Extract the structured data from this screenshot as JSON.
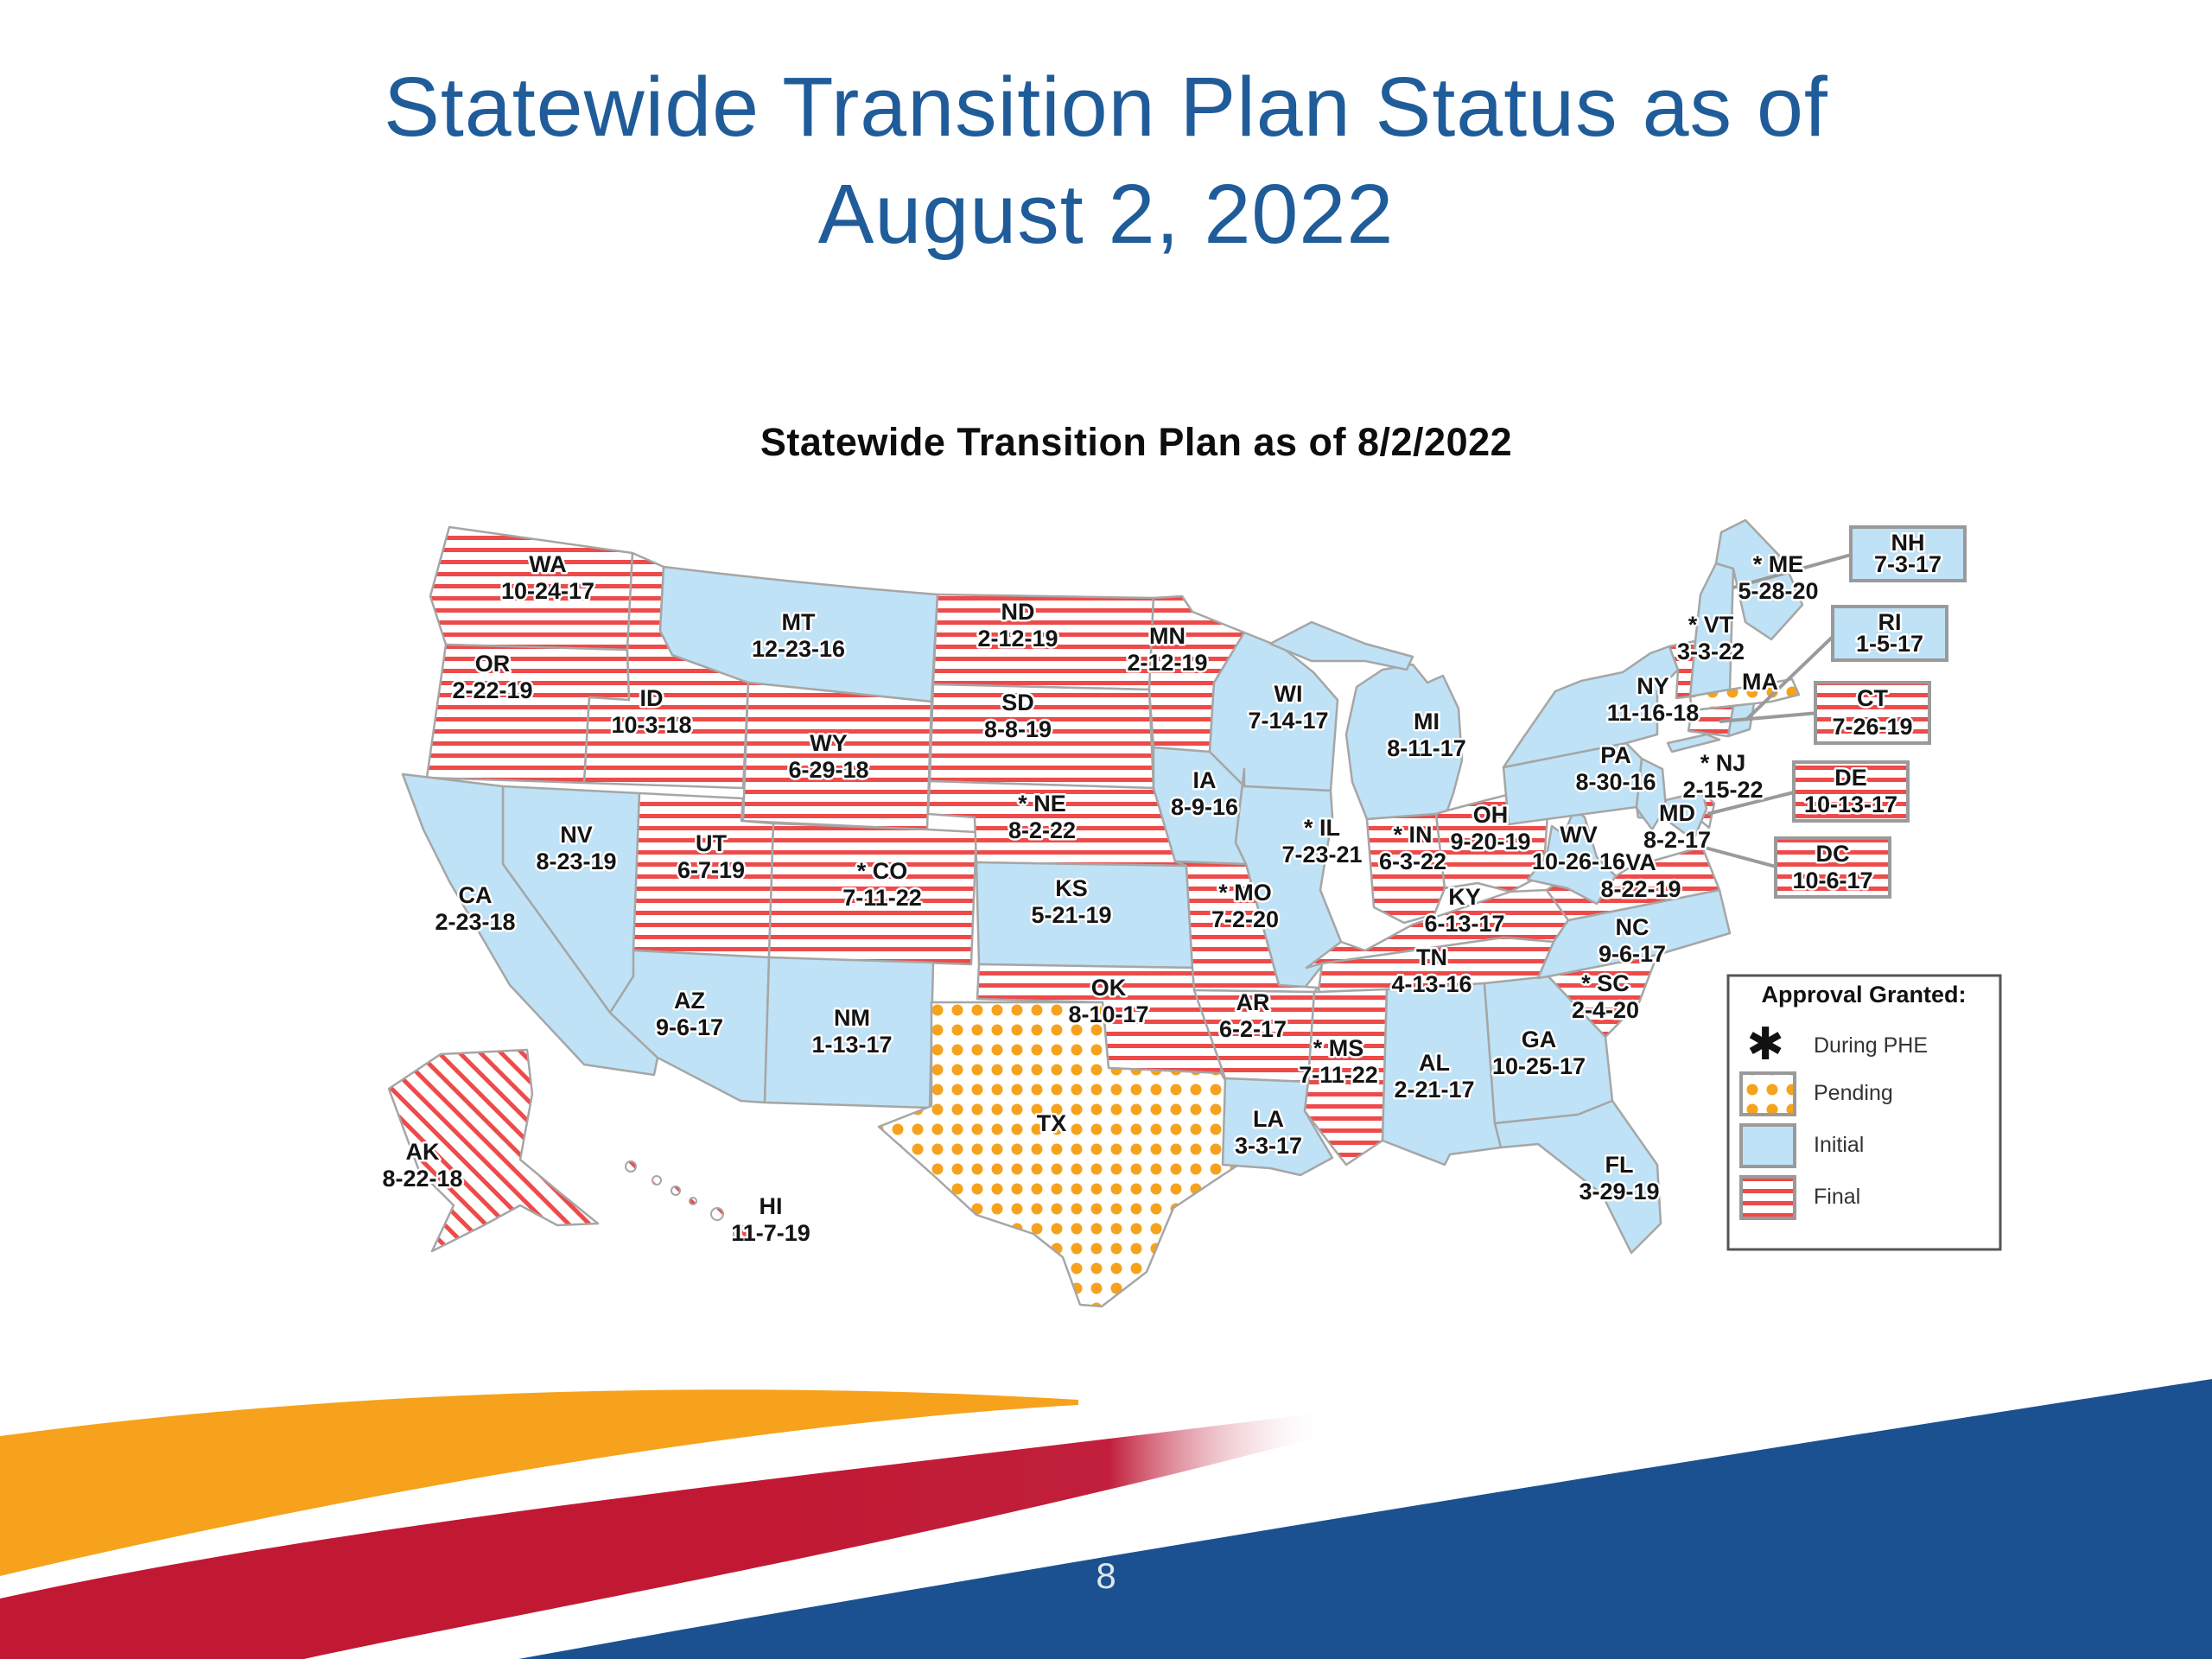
{
  "slide": {
    "title_line1": "Statewide Transition Plan Status as of",
    "title_line2": "August 2, 2022",
    "page_number": "8"
  },
  "map": {
    "title": "Statewide Transition Plan as of 8/2/2022",
    "status_colors": {
      "initial": "#bfe2f6",
      "final_stripe": "#ee4a4a",
      "pending_dot": "#f6a21c",
      "border": "#a6a6a6"
    },
    "states": [
      {
        "id": "WA",
        "label": "WA",
        "date": "10-24-17",
        "status": "final"
      },
      {
        "id": "OR",
        "label": "OR",
        "date": "2-22-19",
        "status": "final"
      },
      {
        "id": "ID",
        "label": "ID",
        "date": "10-3-18",
        "status": "final"
      },
      {
        "id": "MT",
        "label": "MT",
        "date": "12-23-16",
        "status": "initial"
      },
      {
        "id": "WY",
        "label": "WY",
        "date": "6-29-18",
        "status": "final"
      },
      {
        "id": "NV",
        "label": "NV",
        "date": "8-23-19",
        "status": "initial"
      },
      {
        "id": "CA",
        "label": "CA",
        "date": "2-23-18",
        "status": "initial"
      },
      {
        "id": "UT",
        "label": "UT",
        "date": "6-7-19",
        "status": "final"
      },
      {
        "id": "CO",
        "label": "* CO",
        "date": "7-11-22",
        "status": "final"
      },
      {
        "id": "AZ",
        "label": "AZ",
        "date": "9-6-17",
        "status": "initial"
      },
      {
        "id": "NM",
        "label": "NM",
        "date": "1-13-17",
        "status": "initial"
      },
      {
        "id": "ND",
        "label": "ND",
        "date": "2-12-19",
        "status": "final"
      },
      {
        "id": "SD",
        "label": "SD",
        "date": "8-8-19",
        "status": "final"
      },
      {
        "id": "NE",
        "label": "* NE",
        "date": "8-2-22",
        "status": "final"
      },
      {
        "id": "KS",
        "label": "KS",
        "date": "5-21-19",
        "status": "initial"
      },
      {
        "id": "OK",
        "label": "OK",
        "date": "8-10-17",
        "status": "final"
      },
      {
        "id": "TX",
        "label": "TX",
        "date": "",
        "status": "pending"
      },
      {
        "id": "MN",
        "label": "MN",
        "date": "2-12-19",
        "status": "final"
      },
      {
        "id": "IA",
        "label": "IA",
        "date": "8-9-16",
        "status": "initial"
      },
      {
        "id": "WI",
        "label": "WI",
        "date": "7-14-17",
        "status": "initial"
      },
      {
        "id": "IL",
        "label": "* IL",
        "date": "7-23-21",
        "status": "initial"
      },
      {
        "id": "MO",
        "label": "* MO",
        "date": "7-2-20",
        "status": "final"
      },
      {
        "id": "AR",
        "label": "AR",
        "date": "6-2-17",
        "status": "final"
      },
      {
        "id": "LA",
        "label": "LA",
        "date": "3-3-17",
        "status": "initial"
      },
      {
        "id": "MI",
        "label": "MI",
        "date": "8-11-17",
        "status": "initial"
      },
      {
        "id": "IN",
        "label": "* IN",
        "date": "6-3-22",
        "status": "final"
      },
      {
        "id": "OH",
        "label": "OH",
        "date": "9-20-19",
        "status": "final"
      },
      {
        "id": "KY",
        "label": "KY",
        "date": "6-13-17",
        "status": "final"
      },
      {
        "id": "TN",
        "label": "TN",
        "date": "4-13-16",
        "status": "final"
      },
      {
        "id": "MS",
        "label": "* MS",
        "date": "7-11-22",
        "status": "final"
      },
      {
        "id": "AL",
        "label": "AL",
        "date": "2-21-17",
        "status": "initial"
      },
      {
        "id": "GA",
        "label": "GA",
        "date": "10-25-17",
        "status": "initial"
      },
      {
        "id": "FL",
        "label": "FL",
        "date": "3-29-19",
        "status": "initial"
      },
      {
        "id": "SC",
        "label": "* SC",
        "date": "2-4-20",
        "status": "final"
      },
      {
        "id": "NC",
        "label": "NC",
        "date": "9-6-17",
        "status": "initial"
      },
      {
        "id": "VA",
        "label": "VA",
        "date": "8-22-19",
        "status": "final"
      },
      {
        "id": "WV",
        "label": "WV",
        "date": "10-26-16",
        "status": "initial"
      },
      {
        "id": "PA",
        "label": "PA",
        "date": "8-30-16",
        "status": "initial"
      },
      {
        "id": "NY",
        "label": "NY",
        "date": "11-16-18",
        "status": "initial"
      },
      {
        "id": "MD",
        "label": "MD",
        "date": "8-2-17",
        "status": "initial"
      },
      {
        "id": "NJ",
        "label": "* NJ",
        "date": "2-15-22",
        "status": "initial"
      },
      {
        "id": "VT",
        "label": "* VT",
        "date": "3-3-22",
        "status": "final"
      },
      {
        "id": "ME",
        "label": "* ME",
        "date": "5-28-20",
        "status": "initial"
      },
      {
        "id": "MA",
        "label": "MA",
        "date": "",
        "status": "pending"
      },
      {
        "id": "AK",
        "label": "AK",
        "date": "8-22-18",
        "status": "final_diag"
      },
      {
        "id": "HI",
        "label": "HI",
        "date": "11-7-19",
        "status": "final_diag"
      }
    ],
    "small_states": [
      {
        "id": "NH",
        "status": "initial"
      },
      {
        "id": "RI",
        "status": "initial"
      },
      {
        "id": "CT",
        "status": "final"
      },
      {
        "id": "DE",
        "status": "final"
      }
    ],
    "callouts": [
      {
        "id": "NH",
        "label": "NH",
        "date": "7-3-17",
        "status": "initial"
      },
      {
        "id": "RI",
        "label": "RI",
        "date": "1-5-17",
        "status": "initial"
      },
      {
        "id": "CT",
        "label": "CT",
        "date": "7-26-19",
        "status": "final"
      },
      {
        "id": "DE",
        "label": "DE",
        "date": "10-13-17",
        "status": "final"
      },
      {
        "id": "DC",
        "label": "DC",
        "date": "10-6-17",
        "status": "final"
      }
    ]
  },
  "legend": {
    "title": "Approval Granted:",
    "items": [
      {
        "symbol": "asterisk",
        "label": "During PHE"
      },
      {
        "symbol": "pending",
        "label": "Pending"
      },
      {
        "symbol": "initial",
        "label": "Initial"
      },
      {
        "symbol": "final",
        "label": "Final"
      }
    ]
  },
  "decoration_colors": {
    "wave_orange": "#f6a21c",
    "wave_red": "#c11934",
    "wave_blue": "#1b5190",
    "title_blue": "#1f5c99"
  }
}
